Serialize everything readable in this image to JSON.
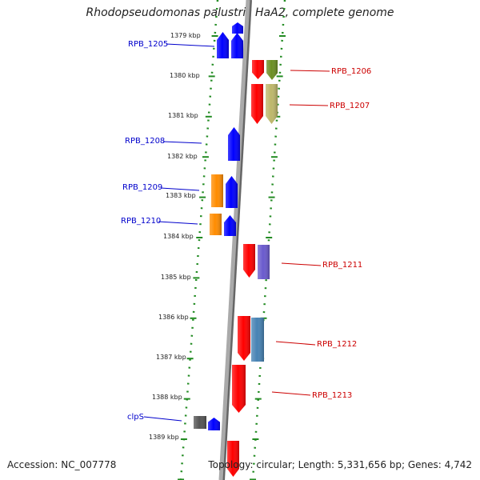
{
  "title": "Rhodopseudomonas palustris HaA2, complete genome",
  "accession": "Accession: NC_007778",
  "topology": "Topology: circular; Length: 5,331,656 bp; Genes: 4,742",
  "colors": {
    "axis": "#999999",
    "guide_dots": "#228b22",
    "left_label": "#0000cc",
    "right_label": "#cc0000"
  },
  "kbp_ticks": [
    "1379 kbp",
    "1380 kbp",
    "1381 kbp",
    "1382 kbp",
    "1383 kbp",
    "1384 kbp",
    "1385 kbp",
    "1386 kbp",
    "1387 kbp",
    "1388 kbp",
    "1389 kbp"
  ],
  "gene_labels": {
    "left": [
      "RPB_1205",
      "RPB_1208",
      "RPB_1209",
      "RPB_1210",
      "clpS"
    ],
    "right": [
      "RPB_1206",
      "RPB_1207",
      "RPB_1211",
      "RPB_1212",
      "RPB_1213"
    ]
  },
  "genes": [
    {
      "color": "#0000ff",
      "dir": "up",
      "strand": "left"
    },
    {
      "color": "#0000ff",
      "dir": "up",
      "strand": "left"
    },
    {
      "color": "#0000ff",
      "dir": "up",
      "strand": "left"
    },
    {
      "color": "#ff0000",
      "dir": "down",
      "strand": "right"
    },
    {
      "color": "#6b8e23",
      "dir": "down",
      "strand": "right"
    },
    {
      "color": "#ff0000",
      "dir": "down",
      "strand": "right"
    },
    {
      "color": "#bdb76b",
      "dir": "down",
      "strand": "right"
    },
    {
      "color": "#0000ff",
      "dir": "up",
      "strand": "left"
    },
    {
      "color": "#ff8c00",
      "dir": "none",
      "strand": "left"
    },
    {
      "color": "#0000ff",
      "dir": "up",
      "strand": "left"
    },
    {
      "color": "#ff8c00",
      "dir": "none",
      "strand": "left"
    },
    {
      "color": "#0000ff",
      "dir": "up",
      "strand": "left"
    },
    {
      "color": "#ff0000",
      "dir": "down",
      "strand": "right"
    },
    {
      "color": "#6a5acd",
      "dir": "none",
      "strand": "right"
    },
    {
      "color": "#ff0000",
      "dir": "down",
      "strand": "right"
    },
    {
      "color": "#4682b4",
      "dir": "none",
      "strand": "right"
    },
    {
      "color": "#ff0000",
      "dir": "down",
      "strand": "right"
    },
    {
      "color": "#555555",
      "dir": "none",
      "strand": "left"
    },
    {
      "color": "#0000ff",
      "dir": "up",
      "strand": "left"
    },
    {
      "color": "#ff0000",
      "dir": "down",
      "strand": "right"
    }
  ]
}
